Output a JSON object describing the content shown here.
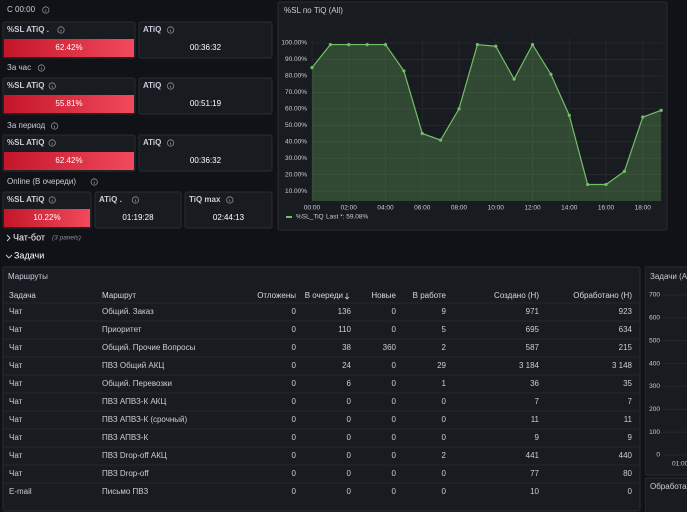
{
  "stat_groups": [
    {
      "label": "C 00:00",
      "panels": [
        {
          "title": "%SL ATiQ .",
          "value": "62.42%"
        },
        {
          "title": "ATiQ",
          "value": "00:36:32"
        }
      ]
    },
    {
      "label": "За час",
      "panels": [
        {
          "title": "%SL ATiQ",
          "value": "55.81%"
        },
        {
          "title": "ATiQ",
          "value": "00:51:19"
        }
      ]
    },
    {
      "label": "За период",
      "panels": [
        {
          "title": "%SL ATiQ",
          "value": "62.42%"
        },
        {
          "title": "ATiQ",
          "value": "00:36:32"
        }
      ]
    },
    {
      "label": "Online (В очереди)",
      "panels": [
        {
          "title": "%SL ATiQ",
          "value": "10.22%"
        },
        {
          "title": "ATiQ .",
          "value": "01:19:28"
        },
        {
          "title": "TiQ max",
          "value": "02:44:13"
        }
      ]
    }
  ],
  "chart": {
    "type": "line",
    "title": "%SL по TiQ (All)",
    "x": [
      0,
      1,
      2,
      3,
      4,
      5,
      6,
      7,
      8,
      9,
      10,
      11,
      12,
      13,
      14,
      15,
      16,
      17,
      18,
      19
    ],
    "series": [
      {
        "name": "%SL_TiQ",
        "color": "#73bf69",
        "values": [
          85,
          99,
          99,
          99,
          99,
          83,
          45,
          41,
          60,
          99,
          98,
          78,
          99,
          81,
          56,
          14,
          14,
          22,
          55,
          59.08
        ]
      }
    ],
    "legend_note": "Last *: 59.08%",
    "xlim": [
      0,
      19.1
    ],
    "ylim": [
      4,
      103
    ],
    "xticks": [
      {
        "value": 0,
        "label": "00:00"
      },
      {
        "value": 2,
        "label": "02:00"
      },
      {
        "value": 4,
        "label": "04:00"
      },
      {
        "value": 6,
        "label": "06:00"
      },
      {
        "value": 8,
        "label": "08:00"
      },
      {
        "value": 10,
        "label": "10:00"
      },
      {
        "value": 12,
        "label": "12:00"
      },
      {
        "value": 14,
        "label": "14:00"
      },
      {
        "value": 16,
        "label": "16:00"
      },
      {
        "value": 18,
        "label": "18:00"
      }
    ],
    "yticks": [
      {
        "value": 10,
        "label": "10.00%"
      },
      {
        "value": 20,
        "label": "20.00%"
      },
      {
        "value": 30,
        "label": "30.00%"
      },
      {
        "value": 40,
        "label": "40.00%"
      },
      {
        "value": 50,
        "label": "50.00%"
      },
      {
        "value": 60,
        "label": "60.00%"
      },
      {
        "value": 70,
        "label": "70.00%"
      },
      {
        "value": 80,
        "label": "80.00%"
      },
      {
        "value": 90,
        "label": "90.00%"
      },
      {
        "value": 100,
        "label": "100.00%"
      }
    ],
    "grid": true
  },
  "rows": [
    {
      "title": "Чат-бот",
      "note": "(3 panels)"
    },
    {
      "title": "Задачи"
    }
  ],
  "table": {
    "title": "Маршруты",
    "columns": [
      "Задача",
      "Маршрут",
      "Отложены",
      "В очереди",
      "Новые",
      "В работе",
      "Создано (Н)",
      "Обработано (Н)"
    ],
    "rows": [
      [
        "Чат",
        "Общий. Заказ",
        0,
        136,
        0,
        9,
        971,
        923
      ],
      [
        "Чат",
        "Приоритет",
        0,
        110,
        0,
        5,
        695,
        634
      ],
      [
        "Чат",
        "Общий. Прочие Вопросы",
        0,
        38,
        360,
        2,
        587,
        215
      ],
      [
        "Чат",
        "ПВЗ Общий АКЦ",
        0,
        24,
        0,
        29,
        "3 184",
        "3 148"
      ],
      [
        "Чат",
        "Общий. Перевозки",
        0,
        6,
        0,
        1,
        36,
        35
      ],
      [
        "Чат",
        "ПВЗ АПВЗ-К АКЦ",
        0,
        0,
        0,
        0,
        7,
        7
      ],
      [
        "Чат",
        "ПВЗ АПВЗ-К (срочный)",
        0,
        0,
        0,
        0,
        11,
        11
      ],
      [
        "Чат",
        "ПВЗ АПВЗ-К",
        0,
        0,
        0,
        0,
        9,
        9
      ],
      [
        "Чат",
        "ПВЗ Drop-off АКЦ",
        0,
        0,
        0,
        2,
        441,
        440
      ],
      [
        "Чат",
        "ПВЗ Drop-off",
        0,
        0,
        0,
        0,
        77,
        80
      ],
      [
        "E-mail",
        "Письмо ПВЗ",
        0,
        0,
        0,
        0,
        10,
        0
      ]
    ]
  },
  "side_panel": {
    "title": "Задачи (Al",
    "ylim": [
      0,
      700
    ],
    "yticks": [
      0,
      100,
      200,
      300,
      400,
      500,
      600,
      700
    ],
    "xtick": "01:00"
  },
  "bottom_panel": {
    "title": "Обработа"
  }
}
